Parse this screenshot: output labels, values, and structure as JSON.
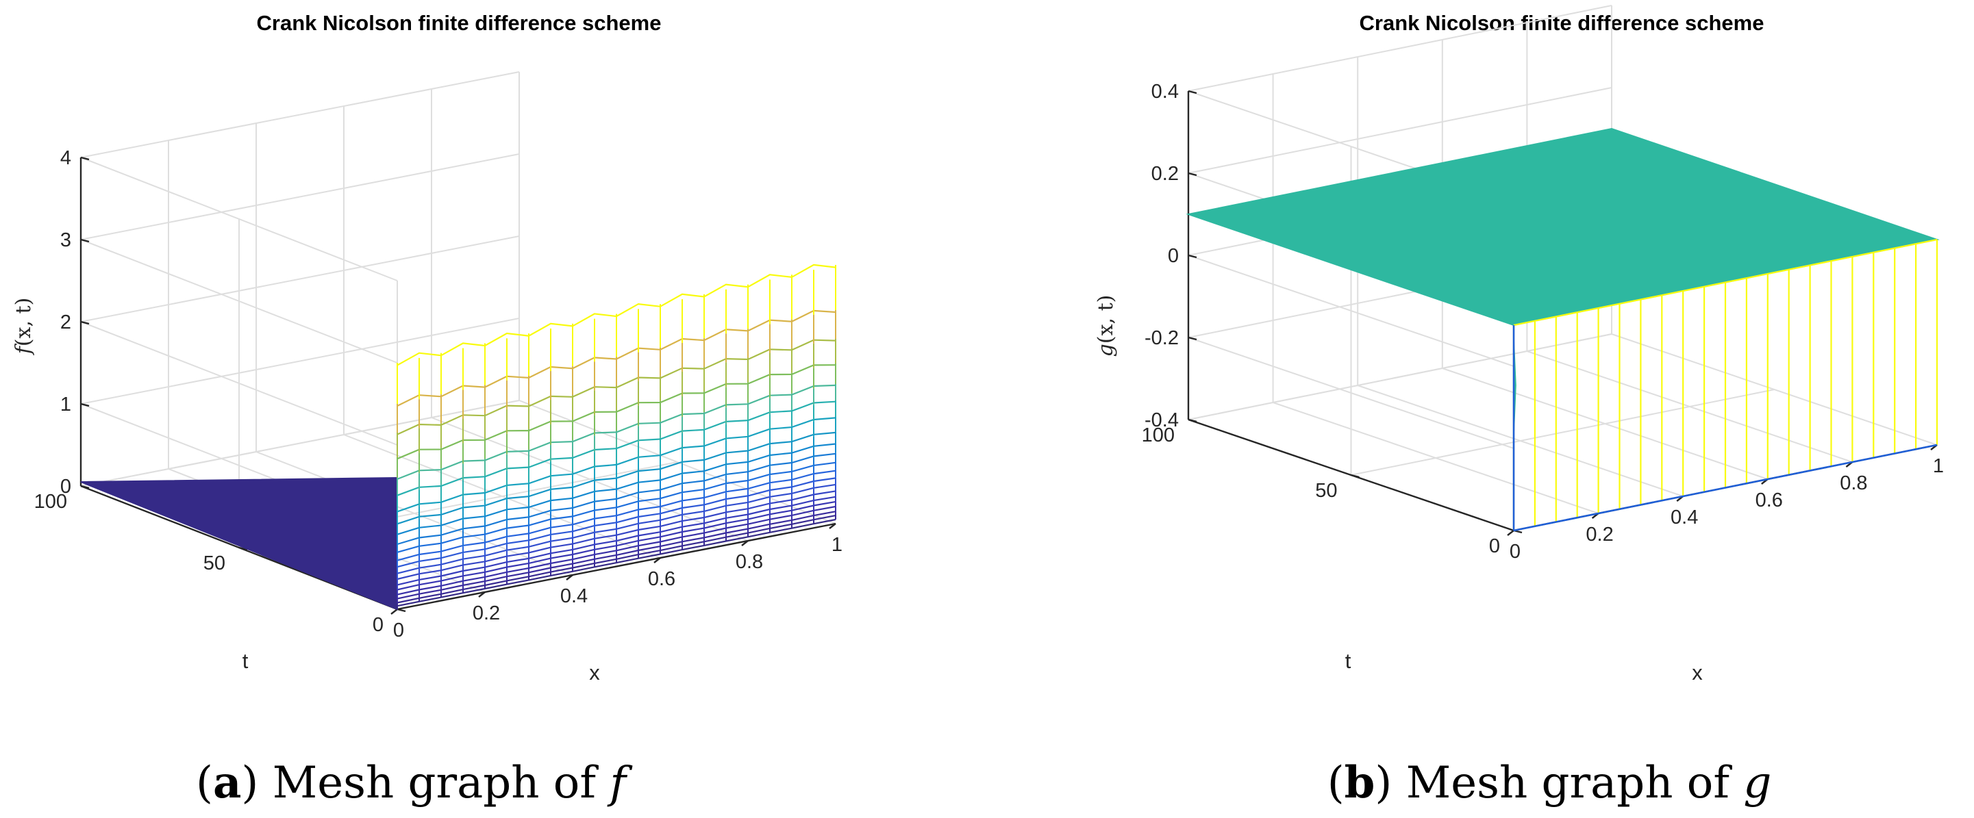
{
  "figure_caption_note": "Two 3D mesh plots side by side",
  "chart_data": [
    {
      "type": "mesh3d",
      "panel": "a",
      "title": "Crank Nicolson finite difference scheme",
      "xlabel": "x",
      "ylabel": "t",
      "zlabel_prefix": "f",
      "zlabel_args": "(x, t)",
      "x_ticks": [
        "0",
        "0.2",
        "0.4",
        "0.6",
        "0.8",
        "1"
      ],
      "t_ticks": [
        "0",
        "50",
        "100"
      ],
      "z_ticks": [
        "0",
        "1",
        "2",
        "3",
        "4"
      ],
      "xlim": [
        0,
        1
      ],
      "tlim": [
        0,
        100
      ],
      "zlim": [
        0,
        4
      ],
      "x_values": [
        0,
        0.05,
        0.1,
        0.15,
        0.2,
        0.25,
        0.3,
        0.35,
        0.4,
        0.45,
        0.5,
        0.55,
        0.6,
        0.65,
        0.7,
        0.75,
        0.8,
        0.85,
        0.9,
        0.95,
        1
      ],
      "level_curves_at_t0": [
        {
          "z_start": 3.0,
          "z_end": 3.15,
          "color": "#f9fb0e"
        },
        {
          "z_start": 2.5,
          "z_end": 2.6,
          "color": "#d9b44a"
        },
        {
          "z_start": 2.15,
          "z_end": 2.25,
          "color": "#a9bd47"
        },
        {
          "z_start": 1.85,
          "z_end": 1.95,
          "color": "#7ebe5c"
        },
        {
          "z_start": 1.6,
          "z_end": 1.7,
          "color": "#4cb99b"
        },
        {
          "z_start": 1.4,
          "z_end": 1.5,
          "color": "#27b0b0"
        },
        {
          "z_start": 1.2,
          "z_end": 1.3,
          "color": "#1aa3c0"
        },
        {
          "z_start": 1.05,
          "z_end": 1.12,
          "color": "#1696c6"
        },
        {
          "z_start": 0.92,
          "z_end": 0.98,
          "color": "#1589d0"
        },
        {
          "z_start": 0.8,
          "z_end": 0.86,
          "color": "#1a7bd6"
        },
        {
          "z_start": 0.7,
          "z_end": 0.75,
          "color": "#1f6fdc"
        },
        {
          "z_start": 0.6,
          "z_end": 0.65,
          "color": "#2764dd"
        },
        {
          "z_start": 0.52,
          "z_end": 0.56,
          "color": "#2e59d7"
        },
        {
          "z_start": 0.44,
          "z_end": 0.48,
          "color": "#324fcf"
        },
        {
          "z_start": 0.37,
          "z_end": 0.4,
          "color": "#3646c6"
        },
        {
          "z_start": 0.3,
          "z_end": 0.33,
          "color": "#383ebd"
        },
        {
          "z_start": 0.24,
          "z_end": 0.27,
          "color": "#3937b3"
        },
        {
          "z_start": 0.18,
          "z_end": 0.21,
          "color": "#3a31a8"
        },
        {
          "z_start": 0.13,
          "z_end": 0.15,
          "color": "#3a2c9e"
        },
        {
          "z_start": 0.08,
          "z_end": 0.1,
          "color": "#382a92"
        },
        {
          "z_start": 0.04,
          "z_end": 0.05,
          "color": "#352a87"
        }
      ],
      "flat_region_value": 0,
      "flat_region_color": "#352a87",
      "caption_label": "a",
      "caption_text": " Mesh graph of ",
      "caption_var": "f"
    },
    {
      "type": "mesh3d",
      "panel": "b",
      "title": "Crank Nicolson finite difference scheme",
      "xlabel": "x",
      "ylabel": "t",
      "zlabel_prefix": "g",
      "zlabel_args": "(x, t)",
      "x_ticks": [
        "0",
        "0.2",
        "0.4",
        "0.6",
        "0.8",
        "1"
      ],
      "t_ticks": [
        "0",
        "50",
        "100"
      ],
      "z_ticks": [
        "-0.4",
        "-0.2",
        "0",
        "0.2",
        "0.4"
      ],
      "xlim": [
        0,
        1
      ],
      "tlim": [
        0,
        100
      ],
      "zlim": [
        -0.4,
        0.4
      ],
      "x_values": [
        0,
        0.05,
        0.1,
        0.15,
        0.2,
        0.25,
        0.3,
        0.35,
        0.4,
        0.45,
        0.5,
        0.55,
        0.6,
        0.65,
        0.7,
        0.75,
        0.8,
        0.85,
        0.9,
        0.95,
        1
      ],
      "surface_value": 0.1,
      "surface_color": "#2eb8a0",
      "edge_top_value": 0.1,
      "edge_top_color": "#f9fb0e",
      "edge_bottom_value": -0.4,
      "edge_bottom_color": "#1f5fd6",
      "caption_label": "b",
      "caption_text": " Mesh graph of ",
      "caption_var": "g"
    }
  ]
}
